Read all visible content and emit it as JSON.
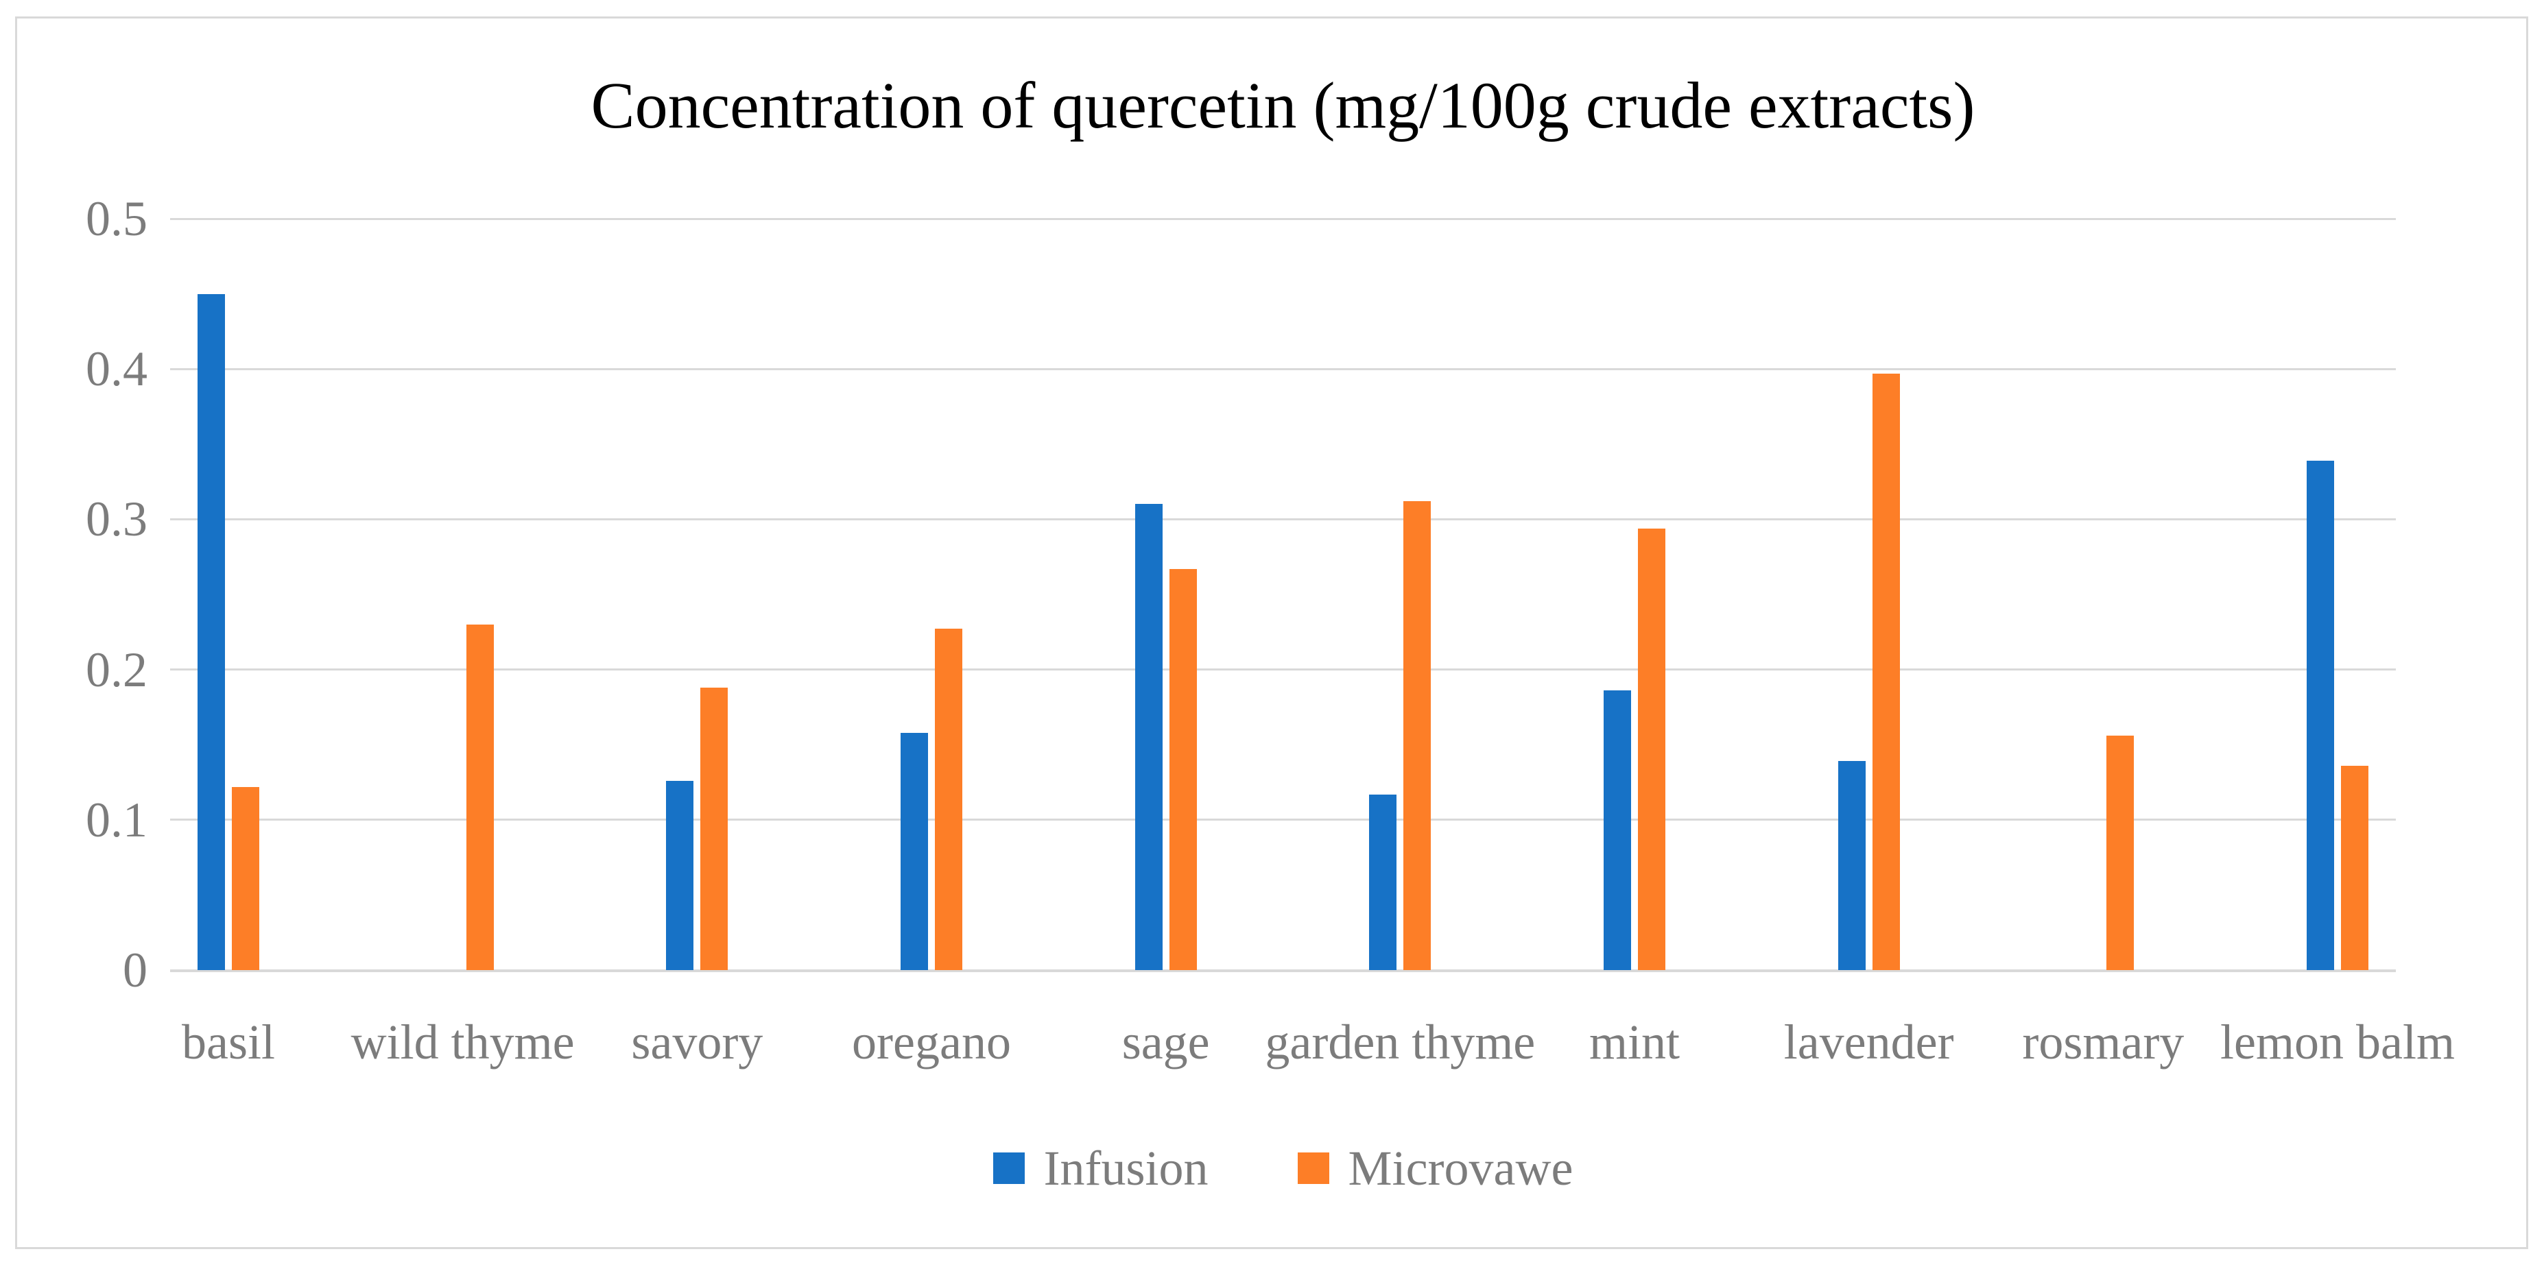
{
  "chart_data": {
    "type": "bar",
    "title": "Concentration of quercetin (mg/100g crude extracts)",
    "categories": [
      "basil",
      "wild thyme",
      "savory",
      "oregano",
      "sage",
      "garden thyme",
      "mint",
      "lavender",
      "rosmary",
      "lemon balm"
    ],
    "series": [
      {
        "name": "Infusion",
        "color": "#1772c6",
        "values": [
          0.45,
          0,
          0.126,
          0.158,
          0.31,
          0.117,
          0.186,
          0.139,
          0,
          0.339
        ]
      },
      {
        "name": "Microvawe",
        "color": "#fd7e27",
        "values": [
          0.122,
          0.23,
          0.188,
          0.227,
          0.267,
          0.312,
          0.294,
          0.397,
          0.156,
          0.136
        ]
      }
    ],
    "xlabel": "",
    "ylabel": "",
    "ylim": [
      0,
      0.5
    ],
    "ytick_interval": 0.1,
    "ytick_labels": [
      "0.5",
      "0.4",
      "0.3",
      "0.2",
      "0.1",
      "0"
    ],
    "grid": true,
    "legend_position": "bottom",
    "colors": {
      "gridline": "#d9d9d9",
      "frame_border": "#d9d9d9",
      "axis_text": "#7c7c7c",
      "title_text": "#000000",
      "background": "#ffffff"
    }
  }
}
